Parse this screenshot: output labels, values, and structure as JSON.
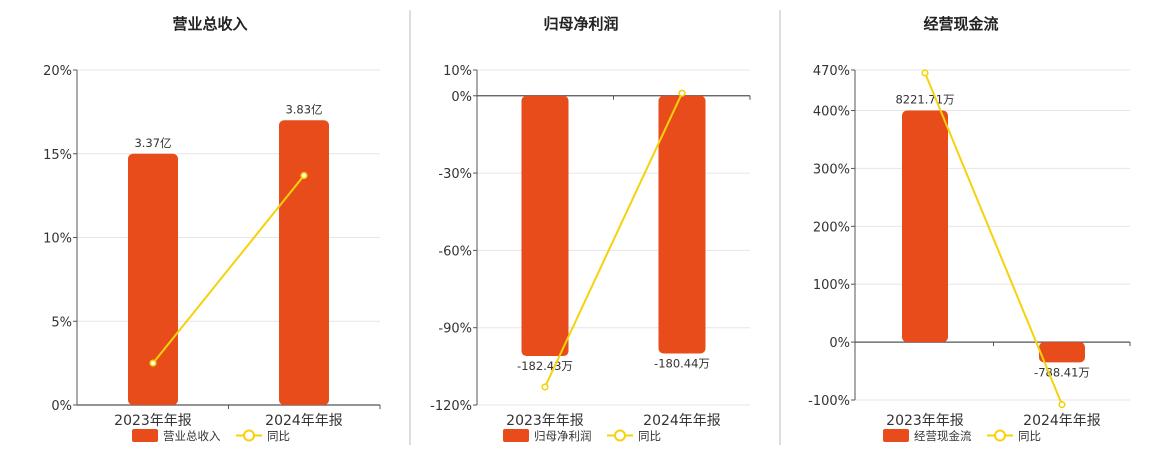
{
  "colors": {
    "bar": "#E84C1A",
    "line": "#F5D20B",
    "grid": "#E6E6E6",
    "axis": "#555555",
    "divider": "#BBBBBB"
  },
  "legend": {
    "line_label": "同比"
  },
  "chart_data": [
    {
      "type": "bar",
      "title": "营业总收入",
      "categories": [
        "2023年年报",
        "2024年年报"
      ],
      "ylim": [
        0,
        20
      ],
      "yticks": [
        0,
        5,
        10,
        15,
        20
      ],
      "tick_format": "%",
      "series": [
        {
          "name": "营业总收入",
          "kind": "bar",
          "values": [
            15,
            17
          ],
          "labels": [
            "3.37亿",
            "3.83亿"
          ]
        },
        {
          "name": "同比",
          "kind": "line",
          "values": [
            2.5,
            13.7
          ]
        }
      ]
    },
    {
      "type": "bar",
      "title": "归母净利润",
      "categories": [
        "2023年年报",
        "2024年年报"
      ],
      "ylim": [
        -120,
        10
      ],
      "yticks": [
        10,
        0,
        -30,
        -60,
        -90,
        -120
      ],
      "tick_format": "%",
      "series": [
        {
          "name": "归母净利润",
          "kind": "bar",
          "values": [
            -101,
            -100
          ],
          "labels": [
            "-182.43万",
            "-180.44万"
          ]
        },
        {
          "name": "同比",
          "kind": "line",
          "values": [
            -113,
            1
          ]
        }
      ]
    },
    {
      "type": "bar",
      "title": "经营现金流",
      "categories": [
        "2023年年报",
        "2024年年报"
      ],
      "ylim": [
        -100,
        470
      ],
      "yticks": [
        470,
        400,
        300,
        200,
        100,
        0,
        -100
      ],
      "tick_format": "%",
      "series": [
        {
          "name": "经营现金流",
          "kind": "bar",
          "values": [
            400,
            -35
          ],
          "labels": [
            "8221.71万",
            "-788.41万"
          ]
        },
        {
          "name": "同比",
          "kind": "line",
          "values": [
            465,
            -108
          ]
        }
      ]
    }
  ]
}
